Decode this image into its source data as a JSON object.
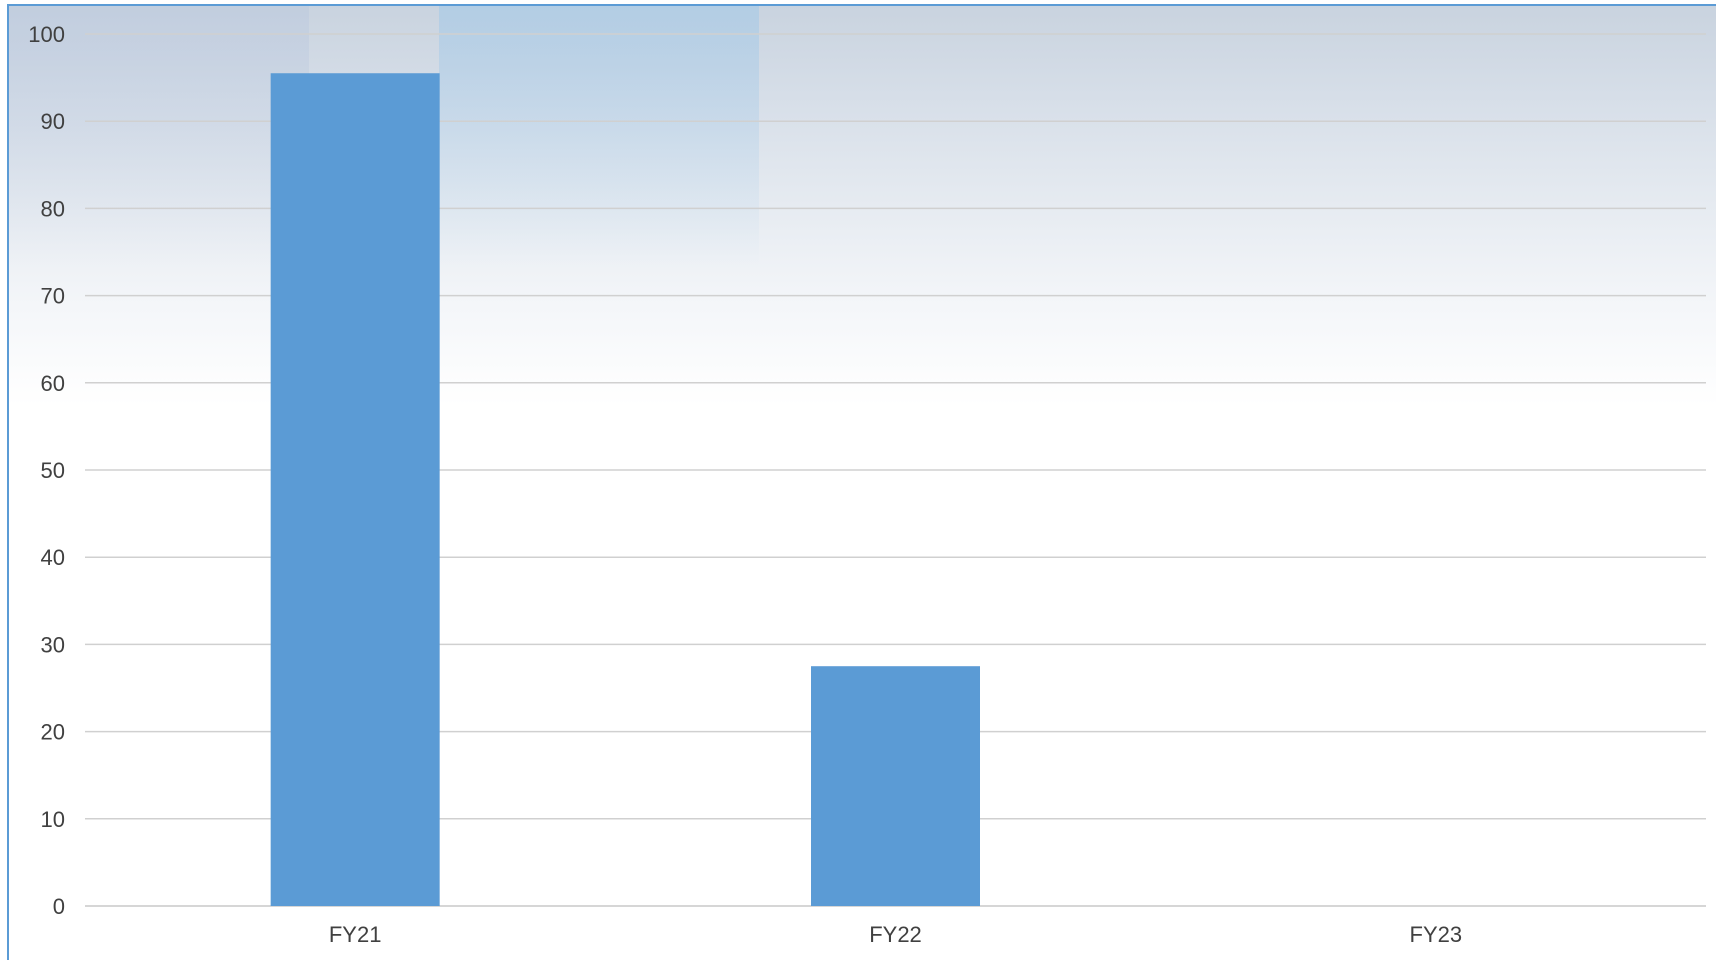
{
  "chart_data": {
    "type": "bar",
    "categories": [
      "FY21",
      "FY22",
      "FY23"
    ],
    "values": [
      95.5,
      27.5,
      0
    ],
    "ylim": [
      0,
      100
    ],
    "yticks": [
      0,
      10,
      20,
      30,
      40,
      50,
      60,
      70,
      80,
      90,
      100
    ],
    "grid": true,
    "bar_color": "#5b9bd5",
    "grid_color": "#d9d9d9",
    "label_color": "#404040"
  }
}
